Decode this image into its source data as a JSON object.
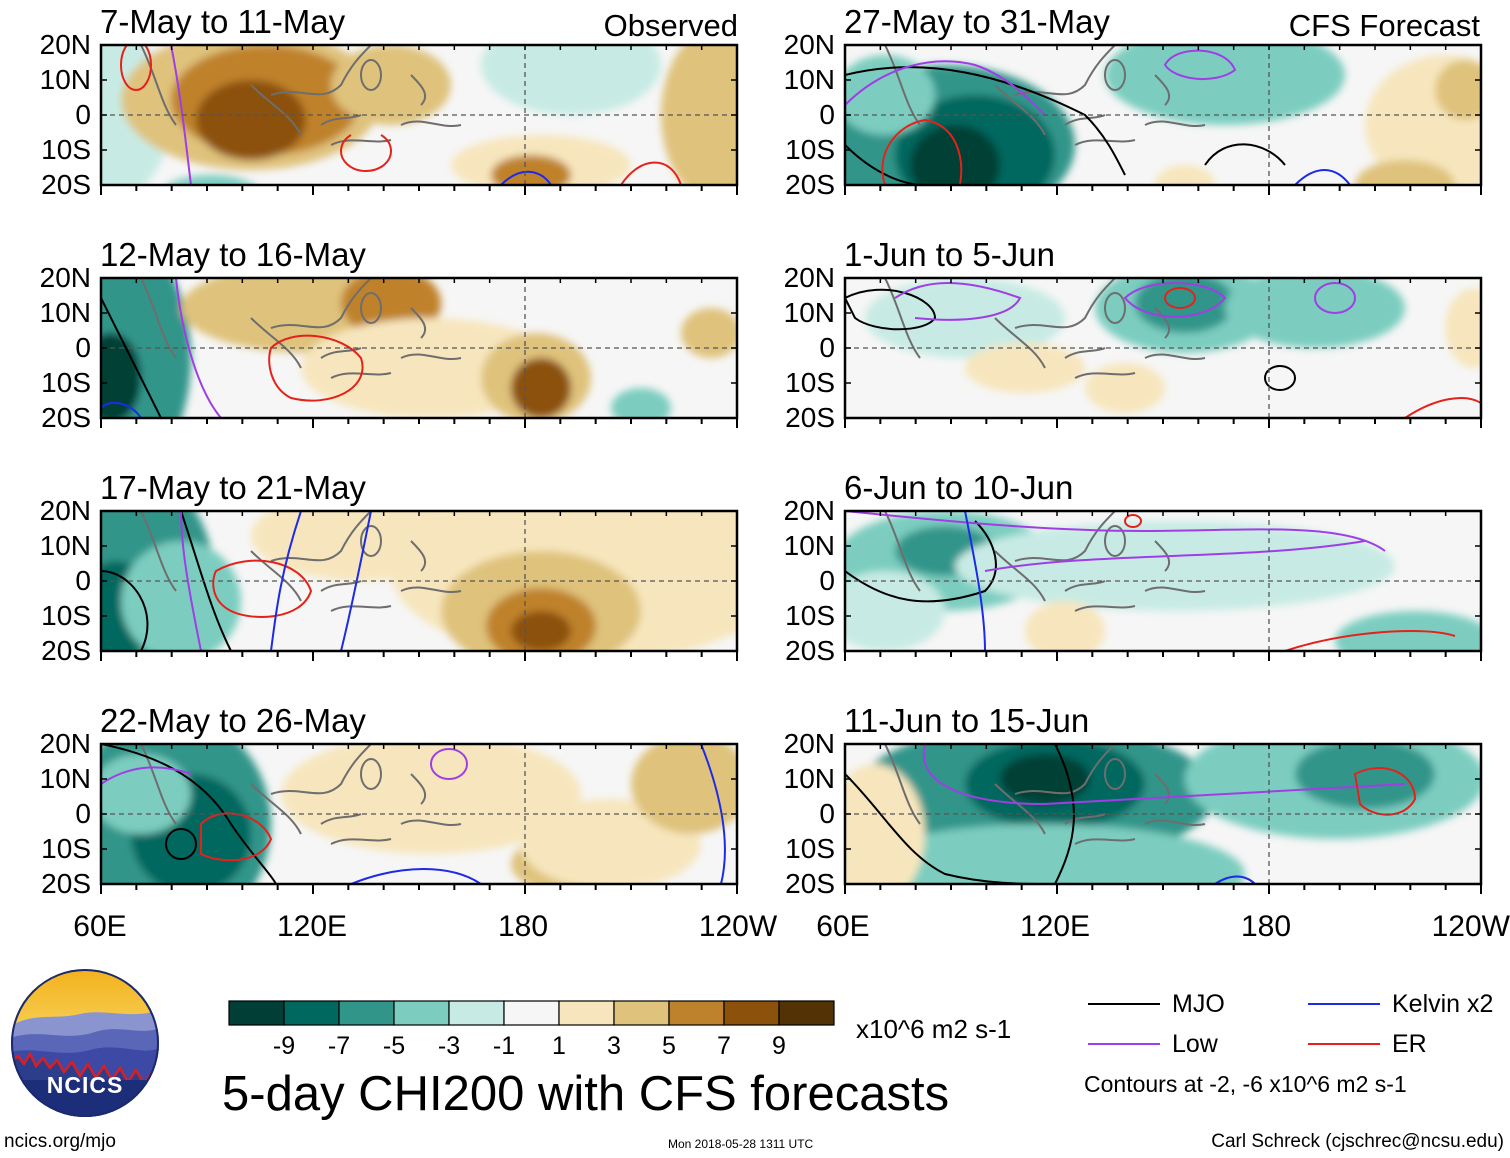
{
  "chart_data": {
    "type": "heatmap",
    "title": "5-day CHI200 with CFS forecasts",
    "variable": "CHI200 anomaly",
    "units": "x10^6 m2 s-1",
    "x_ticks": [
      "60E",
      "120E",
      "180",
      "120W"
    ],
    "x_range_deg": [
      60,
      240
    ],
    "y_ticks": [
      "20N",
      "10N",
      "0",
      "10S",
      "20S"
    ],
    "y_range_deg": [
      -20,
      20
    ],
    "observed_label": "Observed",
    "forecast_label": "CFS Forecast",
    "panels": [
      {
        "id": "obs1",
        "kind": "observed",
        "period": "7-May to 11-May"
      },
      {
        "id": "obs2",
        "kind": "observed",
        "period": "12-May to 16-May"
      },
      {
        "id": "obs3",
        "kind": "observed",
        "period": "17-May to 21-May"
      },
      {
        "id": "obs4",
        "kind": "observed",
        "period": "22-May to 26-May"
      },
      {
        "id": "fc1",
        "kind": "forecast",
        "period": "27-May to 31-May"
      },
      {
        "id": "fc2",
        "kind": "forecast",
        "period": "1-Jun to 5-Jun"
      },
      {
        "id": "fc3",
        "kind": "forecast",
        "period": "6-Jun to 10-Jun"
      },
      {
        "id": "fc4",
        "kind": "forecast",
        "period": "11-Jun to 15-Jun"
      }
    ],
    "colorbar": {
      "labels": [
        "-9",
        "-7",
        "-5",
        "-3",
        "-1",
        "1",
        "3",
        "5",
        "7",
        "9"
      ],
      "colors": [
        "#013f36",
        "#00685f",
        "#31958a",
        "#7ccdc0",
        "#c7ebe4",
        "#f6f6f6",
        "#f7e6bd",
        "#dfc27c",
        "#bf822c",
        "#8c510a",
        "#533306"
      ],
      "units_label": "x10^6 m2 s-1"
    },
    "legend": {
      "items": [
        {
          "label": "MJO",
          "color": "#000000"
        },
        {
          "label": "Kelvin x2",
          "color": "#1d2be6"
        },
        {
          "label": "Low",
          "color": "#a03ee6"
        },
        {
          "label": "ER",
          "color": "#e3231b"
        }
      ],
      "note": "Contours at -2, -6 x10^6 m2 s-1"
    }
  },
  "logo": {
    "text": "NCICS"
  },
  "footer": {
    "url": "ncics.org/mjo",
    "timestamp": "Mon 2018-05-28 1311 UTC",
    "author": "Carl Schreck (cjschrec@ncsu.edu)"
  }
}
